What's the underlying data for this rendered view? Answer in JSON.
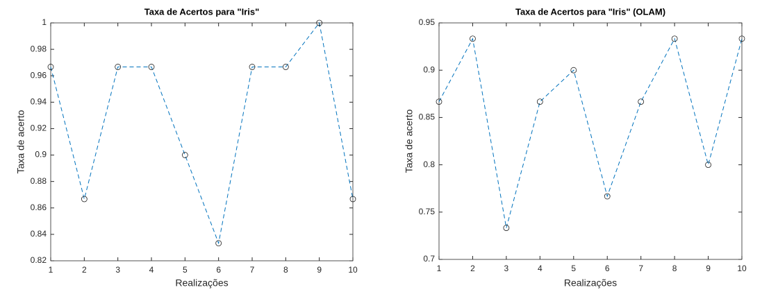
{
  "chart_data": [
    {
      "type": "line",
      "title": "Taxa de Acertos para \"Iris\"",
      "x_label": "Realizações",
      "y_label": "Taxa de acerto",
      "x": [
        1,
        2,
        3,
        4,
        5,
        6,
        7,
        8,
        9,
        10
      ],
      "series": [
        {
          "color": "#0072bd",
          "marker_color": "#222222",
          "values": [
            0.9667,
            0.8667,
            0.9667,
            0.9667,
            0.9,
            0.8333,
            0.9667,
            0.9667,
            1,
            0.8667
          ]
        }
      ],
      "xlim": [
        1,
        10
      ],
      "xticks": [
        1,
        2,
        3,
        4,
        5,
        6,
        7,
        8,
        9,
        10
      ],
      "ylim": [
        0.82,
        1
      ],
      "yticks": [
        0.82,
        0.84,
        0.86,
        0.88,
        0.9,
        0.92,
        0.94,
        0.96,
        0.98,
        1
      ]
    },
    {
      "type": "line",
      "title": "Taxa de Acertos para \"Iris\" (OLAM)",
      "x_label": "Realizações",
      "y_label": "Taxa de acerto",
      "x": [
        1,
        2,
        3,
        4,
        5,
        6,
        7,
        8,
        9,
        10
      ],
      "series": [
        {
          "color": "#0072bd",
          "marker_color": "#222222",
          "values": [
            0.8667,
            0.9333,
            0.7333,
            0.8667,
            0.9,
            0.7667,
            0.8667,
            0.9333,
            0.8,
            0.9333
          ]
        }
      ],
      "xlim": [
        1,
        10
      ],
      "xticks": [
        1,
        2,
        3,
        4,
        5,
        6,
        7,
        8,
        9,
        10
      ],
      "ylim": [
        0.7,
        0.95
      ],
      "yticks": [
        0.7,
        0.75,
        0.8,
        0.85,
        0.9,
        0.95
      ]
    }
  ]
}
